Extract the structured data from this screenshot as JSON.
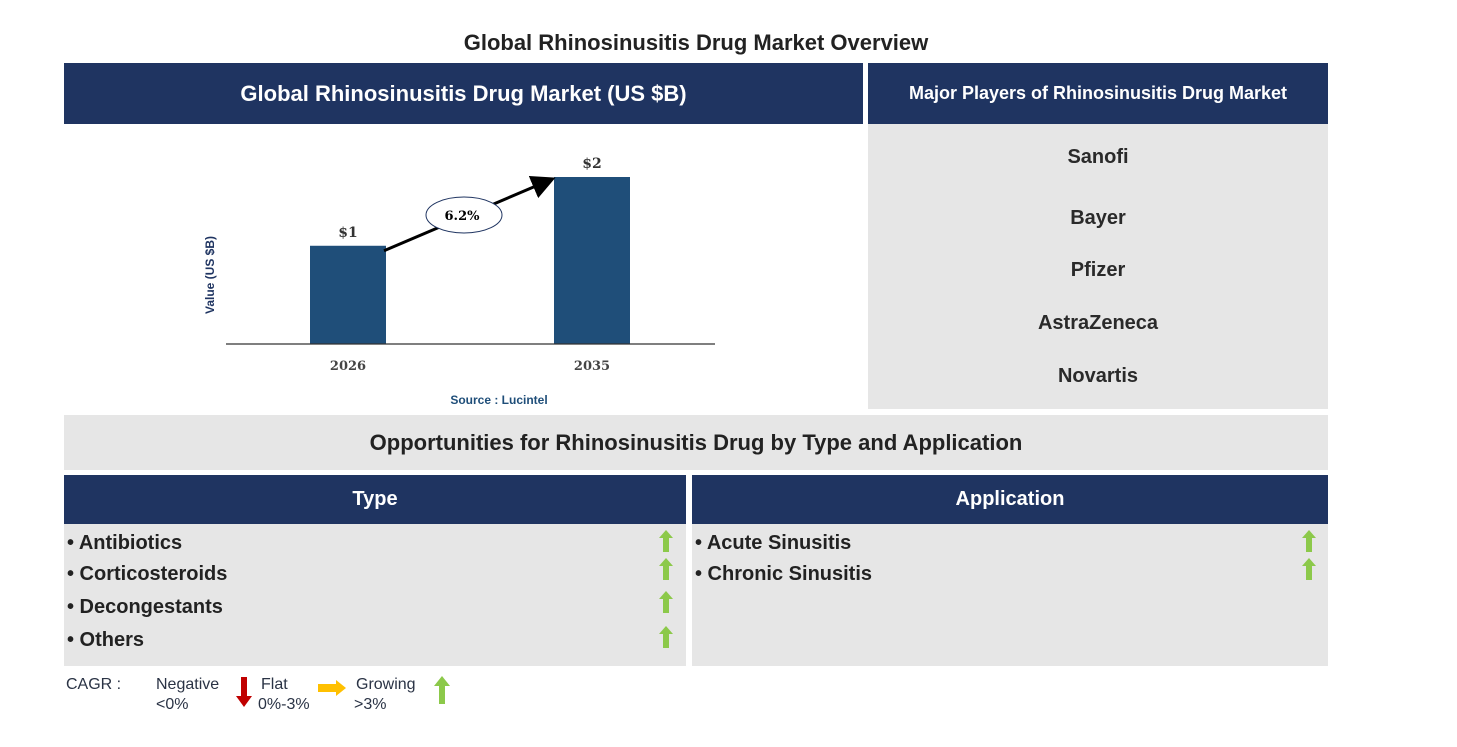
{
  "title": "Global Rhinosinusitis Drug Market Overview",
  "market_panel": {
    "header": "Global Rhinosinusitis Drug Market (US $B)",
    "source": "Source : Lucintel"
  },
  "players_panel": {
    "header": "Major Players of Rhinosinusitis Drug Market",
    "players": [
      "Sanofi",
      "Bayer",
      "Pfizer",
      "AstraZeneca",
      "Novartis"
    ]
  },
  "opportunities": {
    "header": "Opportunities for Rhinosinusitis Drug by Type and Application",
    "type": {
      "header": "Type",
      "items": [
        "• Antibiotics",
        "• Corticosteroids",
        "• Decongestants",
        "• Others"
      ],
      "trend": [
        "growing",
        "growing",
        "growing",
        "growing"
      ]
    },
    "application": {
      "header": "Application",
      "items": [
        "• Acute Sinusitis",
        "• Chronic Sinusitis"
      ],
      "trend": [
        "growing",
        "growing"
      ]
    }
  },
  "legend": {
    "cagr": "CAGR :",
    "negative": "Negative",
    "negative_range": "<0%",
    "flat": "Flat",
    "flat_range": "0%-3%",
    "growing": "Growing",
    "growing_range": ">3%"
  },
  "colors": {
    "navy": "#1f3461",
    "bar": "#1f4e79",
    "panel": "#e6e6e6",
    "up": "#8cc94a",
    "down": "#c00000",
    "flat": "#ffc000"
  },
  "chart_data": {
    "type": "bar",
    "categories": [
      "2026",
      "2035"
    ],
    "values": [
      1.0,
      1.7
    ],
    "data_labels": [
      "$1",
      "$2"
    ],
    "ylabel": "Value (US $B)",
    "xlabel": "",
    "annotation": "6.2%",
    "grid": false
  }
}
